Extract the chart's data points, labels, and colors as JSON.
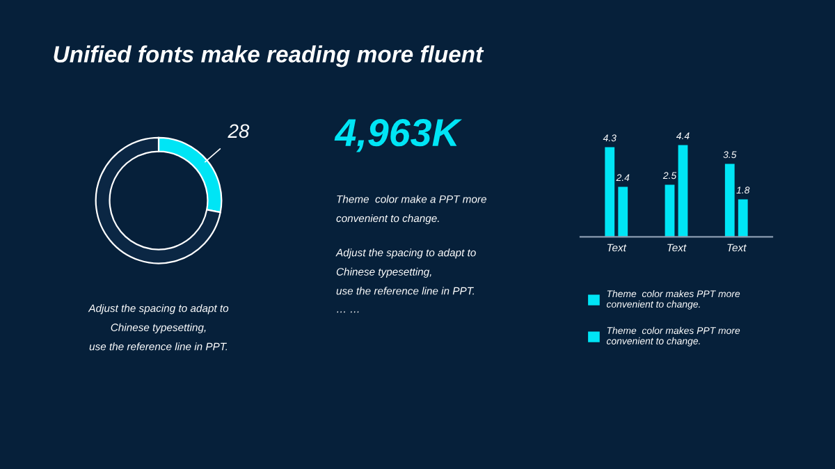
{
  "chart_data": [
    {
      "type": "donut",
      "title": "Unified fonts make reading more fluent",
      "categories": [
        null,
        null
      ],
      "values": [
        28,
        72
      ],
      "colors": [
        "#00e5f5",
        "#0b2744"
      ],
      "value_labels": [
        "28",
        null
      ],
      "annotations": [
        "Adjust the spacing to adapt to\nChinese typesetting,\nuse the reference line in PPT."
      ]
    },
    {
      "type": "other",
      "title": "4,963K",
      "annotations": [
        "Theme  color make a PPT more\nconvenient to change.",
        "Adjust the spacing to adapt to\nChinese typesetting,\nuse the reference line in PPT.",
        "… …"
      ]
    },
    {
      "type": "bar",
      "categories": [
        "Text",
        "Text",
        "Text"
      ],
      "data_labels": true,
      "legend": "bottom",
      "series": [
        {
          "name": "Theme  color makes PPT more\nconvenient to change.",
          "color": "#00e5f5",
          "values": [
            4.3,
            2.5,
            3.5
          ]
        },
        {
          "name": "Theme  color makes PPT more\nconvenient to change.",
          "color": "#00e5f5",
          "values": [
            2.4,
            4.4,
            1.8
          ]
        }
      ]
    }
  ]
}
